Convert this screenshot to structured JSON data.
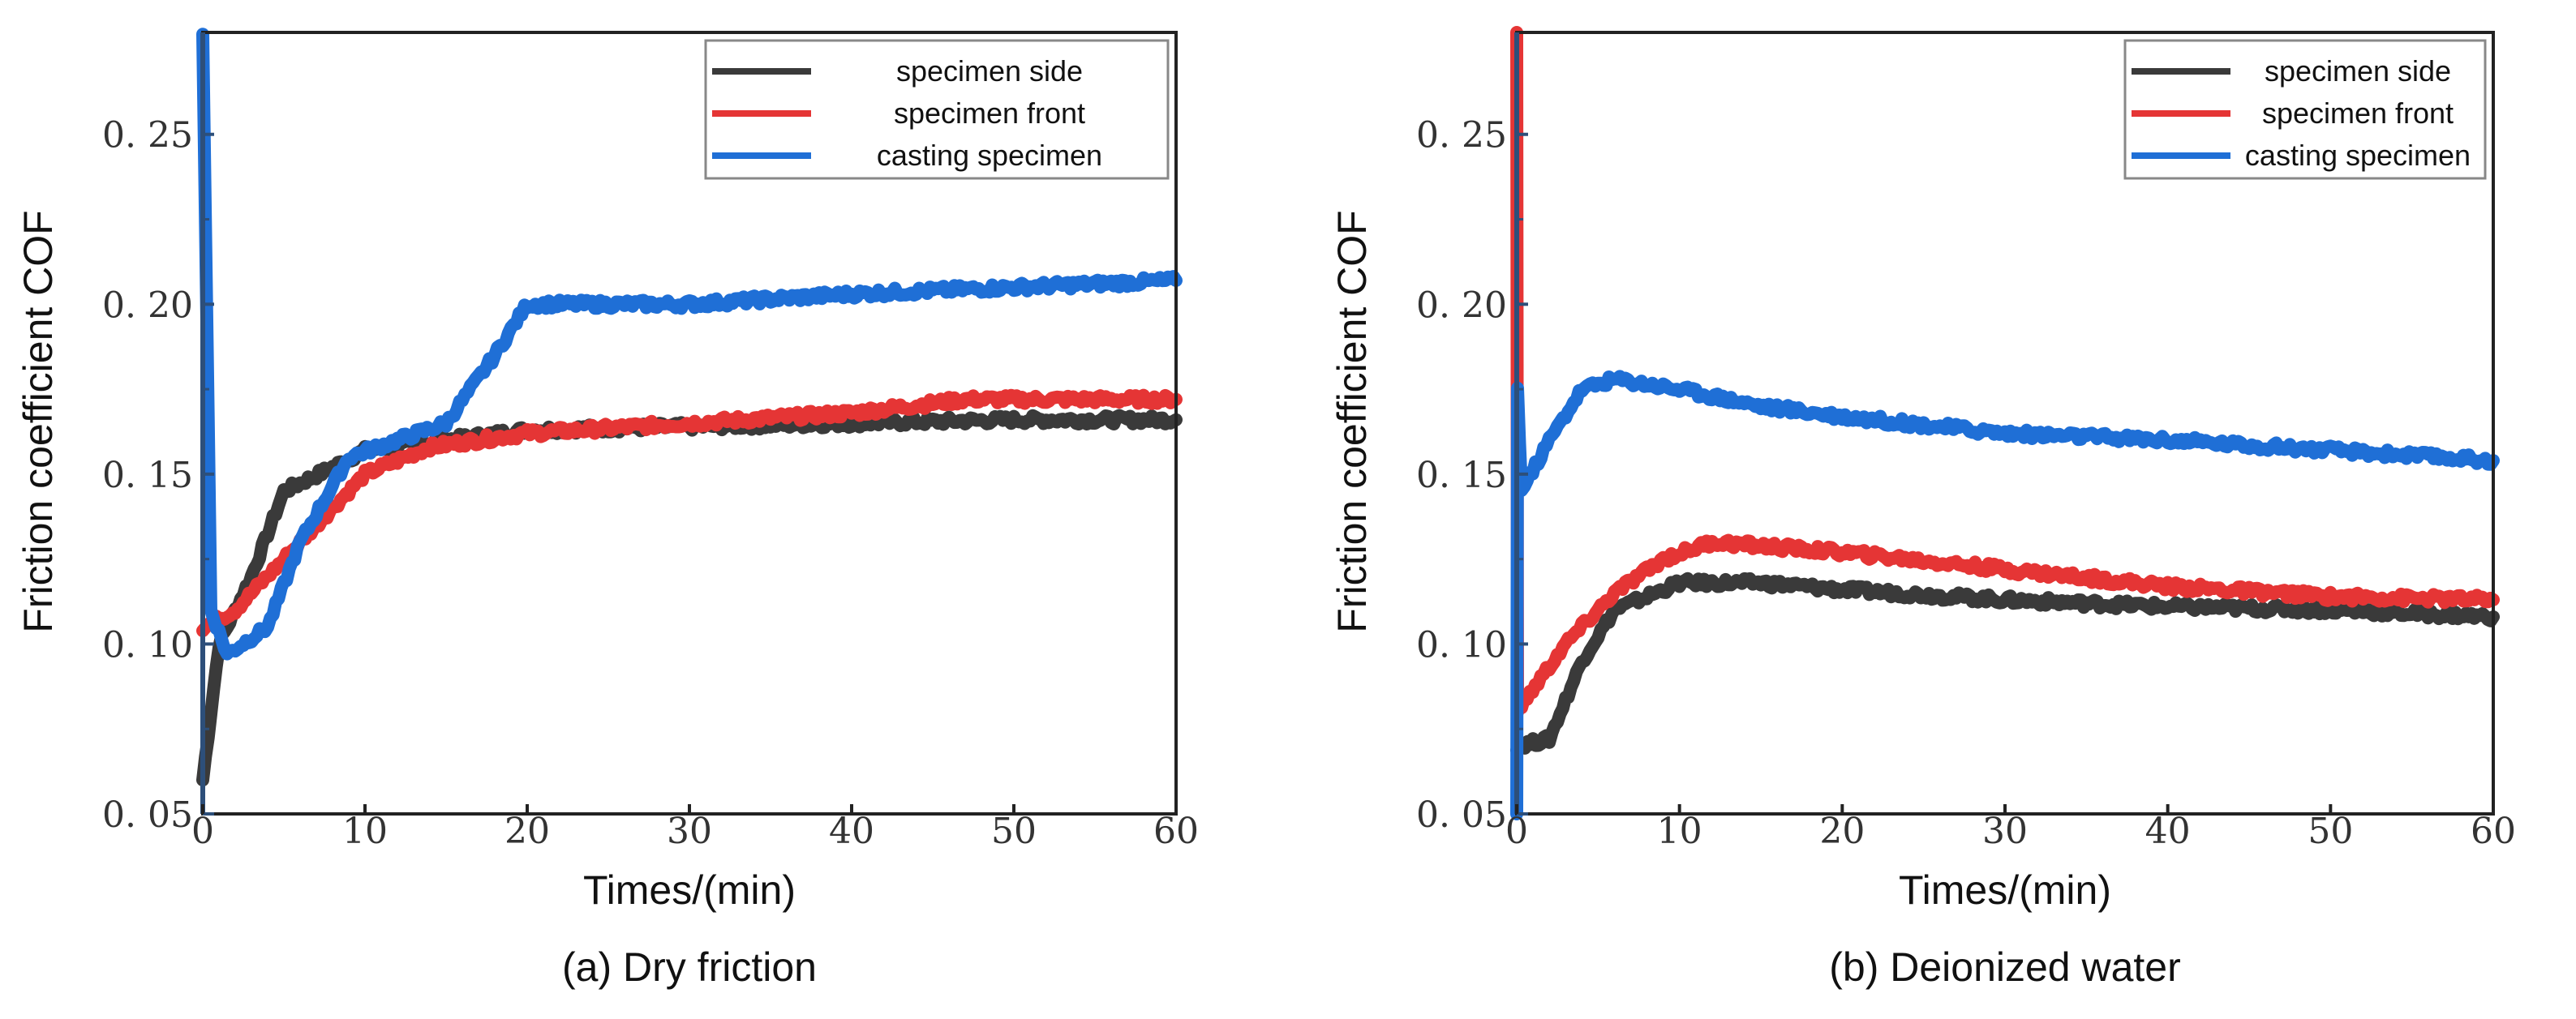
{
  "chart_data": [
    {
      "type": "line",
      "title": "(a) Dry friction",
      "xlabel": "Times/(min)",
      "ylabel": "Friction coefficient COF",
      "xlim": [
        0,
        60
      ],
      "ylim": [
        0.05,
        0.28
      ],
      "xticks": [
        0,
        10,
        20,
        30,
        40,
        50,
        60
      ],
      "yticks": [
        0.05,
        0.1,
        0.15,
        0.2,
        0.25
      ],
      "ytick_labels": [
        "0. 05",
        "0. 10",
        "0. 15",
        "0. 20",
        "0. 25"
      ],
      "grid": false,
      "legend_position": "top-right",
      "series": [
        {
          "name": "specimen side",
          "color": "#3a3a3a",
          "x": [
            0,
            1,
            3,
            5,
            8,
            10,
            15,
            20,
            30,
            40,
            50,
            60
          ],
          "y": [
            0.06,
            0.1,
            0.12,
            0.145,
            0.152,
            0.157,
            0.16,
            0.163,
            0.164,
            0.165,
            0.166,
            0.166
          ]
        },
        {
          "name": "specimen front",
          "color": "#e53535",
          "x": [
            0,
            2,
            4,
            7,
            10,
            14,
            20,
            30,
            40,
            47,
            60
          ],
          "y": [
            0.105,
            0.11,
            0.12,
            0.135,
            0.15,
            0.158,
            0.162,
            0.165,
            0.168,
            0.172,
            0.172
          ]
        },
        {
          "name": "casting specimen",
          "color": "#1f6fd6",
          "x": [
            0,
            0.5,
            1.5,
            4,
            6,
            9,
            12,
            15,
            18,
            20,
            30,
            40,
            50,
            60
          ],
          "y": [
            0.28,
            0.11,
            0.097,
            0.105,
            0.13,
            0.155,
            0.16,
            0.165,
            0.185,
            0.2,
            0.2,
            0.203,
            0.205,
            0.207
          ]
        }
      ]
    },
    {
      "type": "line",
      "title": "(b) Deionized water",
      "xlabel": "Times/(min)",
      "ylabel": "Friction coefficient COF",
      "xlim": [
        0,
        60
      ],
      "ylim": [
        0.05,
        0.28
      ],
      "xticks": [
        0,
        10,
        20,
        30,
        40,
        50,
        60
      ],
      "yticks": [
        0.05,
        0.1,
        0.15,
        0.2,
        0.25
      ],
      "ytick_labels": [
        "0. 05",
        "0. 10",
        "0. 15",
        "0. 20",
        "0. 25"
      ],
      "grid": false,
      "legend_position": "top-right",
      "series": [
        {
          "name": "specimen side",
          "color": "#3a3a3a",
          "x": [
            0,
            2,
            4,
            6,
            10,
            15,
            20,
            30,
            40,
            50,
            60
          ],
          "y": [
            0.07,
            0.072,
            0.095,
            0.11,
            0.118,
            0.118,
            0.116,
            0.113,
            0.111,
            0.11,
            0.108
          ]
        },
        {
          "name": "specimen front",
          "color": "#e53535",
          "x": [
            0,
            0.05,
            0.3,
            3,
            6,
            9,
            12,
            20,
            30,
            40,
            50,
            60
          ],
          "y": [
            0.28,
            0.08,
            0.082,
            0.1,
            0.115,
            0.125,
            0.13,
            0.127,
            0.122,
            0.117,
            0.114,
            0.113
          ]
        },
        {
          "name": "casting specimen",
          "color": "#1f6fd6",
          "x": [
            0,
            0.05,
            0.3,
            2,
            4,
            6,
            10,
            15,
            20,
            30,
            40,
            50,
            60
          ],
          "y": [
            0.05,
            0.175,
            0.145,
            0.16,
            0.175,
            0.178,
            0.175,
            0.17,
            0.167,
            0.162,
            0.16,
            0.157,
            0.154
          ]
        }
      ]
    }
  ]
}
